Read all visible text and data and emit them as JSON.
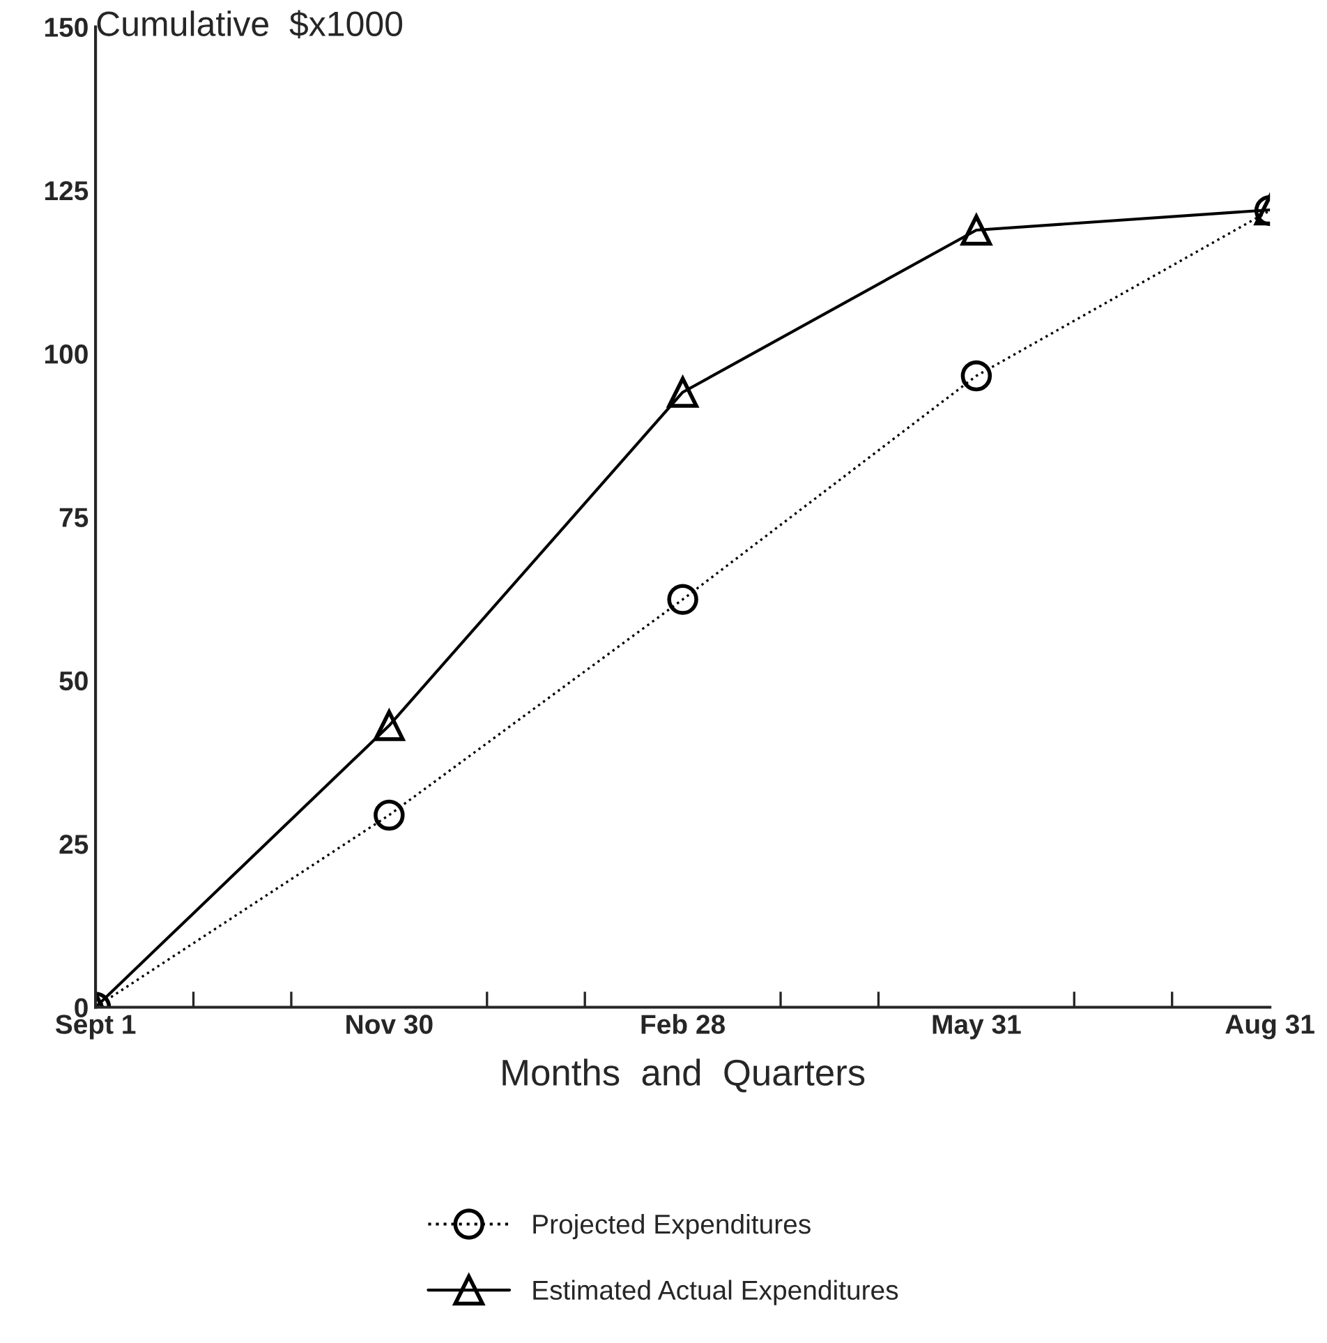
{
  "chart_data": {
    "type": "line",
    "ylabel": "Cumulative  $x1000",
    "xlabel": "Months  and  Quarters",
    "categories": [
      "Sept 1",
      "Nov 30",
      "Feb 28",
      "May 31",
      "Aug 31"
    ],
    "series": [
      {
        "name": "Projected Expenditures",
        "color": "#000000",
        "values": [
          0,
          29.4,
          62.4,
          96.6,
          121.9
        ],
        "marker": "circle",
        "line_style": "dotted"
      },
      {
        "name": "Estimated Actual Expenditures",
        "color": "#000000",
        "values": [
          0,
          43.1,
          94.1,
          118.9,
          122
        ],
        "marker": "triangle",
        "line_style": "solid"
      }
    ],
    "ylim": [
      0,
      150
    ],
    "yticks": [
      0,
      25,
      50,
      75,
      100,
      125,
      150
    ],
    "grid": false,
    "legend": "bottom"
  }
}
